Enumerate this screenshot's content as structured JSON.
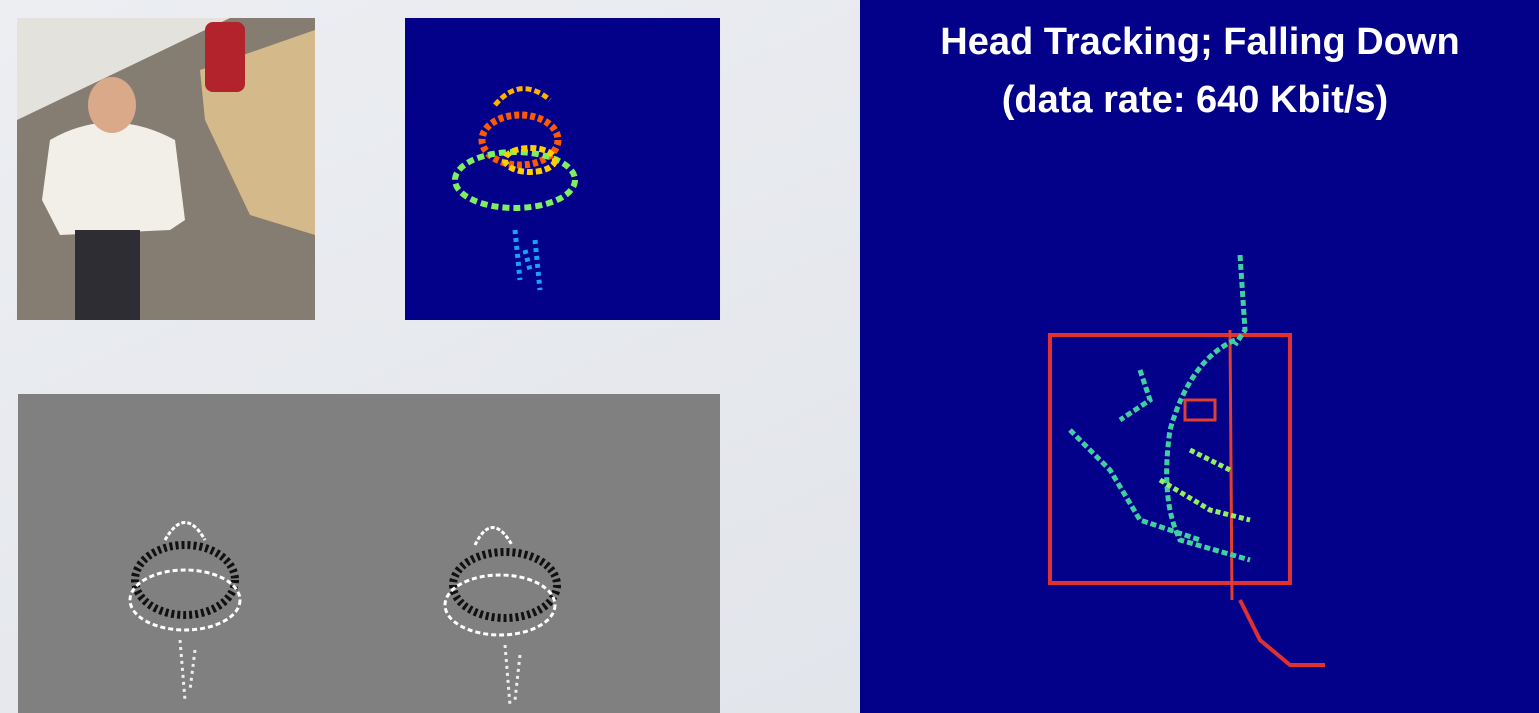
{
  "tracking_view": {
    "title": "Head Tracking; Falling Down",
    "subtitle": "(data rate: 640 Kbit/s)"
  }
}
